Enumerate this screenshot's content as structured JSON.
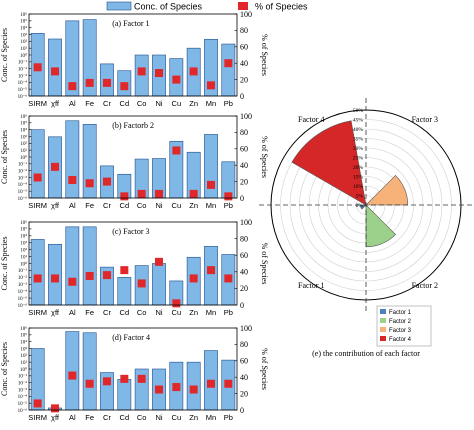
{
  "legend": {
    "conc_label": "Conc. of Species",
    "pct_label": "% of Species",
    "conc_color": "#7fb7e6",
    "pct_color": "#e0282a"
  },
  "chart_data": [
    {
      "type": "bar",
      "panel": "(a) Factor 1",
      "categories": [
        "SIRM",
        "χff",
        "Al",
        "Fe",
        "Cr",
        "Cd",
        "Co",
        "Ni",
        "Cu",
        "Zn",
        "Mn",
        "Pb"
      ],
      "series": [
        {
          "name": "Conc. of Species",
          "axis": "left",
          "scale": "log",
          "values": [
            1500,
            220,
            100000,
            150000,
            0.05,
            0.005,
            1,
            1,
            0.3,
            10,
            200,
            40
          ]
        },
        {
          "name": "% of Species",
          "axis": "right",
          "values": [
            35,
            30,
            12,
            16,
            16,
            12,
            30,
            28,
            20,
            30,
            13,
            40
          ]
        }
      ],
      "ylabel_left": "Conc. of Species",
      "ylabel_right": "% of Species",
      "ylim_left": [
        1e-06,
        1000000.0
      ],
      "ylim_right": [
        0,
        100
      ],
      "yticks_left": [
        "10⁻⁶",
        "10⁻⁵",
        "10⁻⁴",
        "10⁻³",
        "10⁻²",
        "10⁻¹",
        "10⁰",
        "10¹",
        "10²",
        "10³",
        "10⁴",
        "10⁵",
        "10⁶"
      ],
      "yticks_right": [
        "0",
        "20",
        "40",
        "60",
        "80",
        "100"
      ]
    },
    {
      "type": "bar",
      "panel": "(b) Factorb 2",
      "categories": [
        "SIRM",
        "χff",
        "Al",
        "Fe",
        "Cr",
        "Cd",
        "Co",
        "Ni",
        "Cu",
        "Zn",
        "Mn",
        "Pb"
      ],
      "series": [
        {
          "name": "Conc. of Species",
          "axis": "left",
          "scale": "log",
          "values": [
            10000,
            900,
            200000,
            60000,
            0.05,
            0.003,
            0.5,
            0.6,
            200,
            5,
            2000,
            0.2
          ]
        },
        {
          "name": "% of Species",
          "axis": "right",
          "values": [
            25,
            38,
            22,
            18,
            20,
            2,
            5,
            5,
            58,
            5,
            16,
            2
          ]
        }
      ],
      "ylabel_left": "Conc. of Species",
      "ylabel_right": "% of Species",
      "ylim_left": [
        1e-06,
        1000000.0
      ],
      "ylim_right": [
        0,
        100
      ],
      "yticks_left": [
        "10⁻⁶",
        "10⁻⁵",
        "10⁻⁴",
        "10⁻³",
        "10⁻²",
        "10⁻¹",
        "10⁰",
        "10¹",
        "10²",
        "10³",
        "10⁴",
        "10⁵",
        "10⁶"
      ],
      "yticks_right": [
        "0",
        "20",
        "40",
        "60",
        "80",
        "100"
      ]
    },
    {
      "type": "bar",
      "panel": "(c) Factor 3",
      "categories": [
        "SIRM",
        "χff",
        "Al",
        "Fe",
        "Cr",
        "Cd",
        "Co",
        "Ni",
        "Cu",
        "Zn",
        "Mn",
        "Pb"
      ],
      "series": [
        {
          "name": "Conc. of Species",
          "axis": "left",
          "scale": "log",
          "values": [
            3000,
            600,
            200000,
            200000,
            0.3,
            0.01,
            0.5,
            1,
            0.003,
            8,
            300,
            20
          ]
        },
        {
          "name": "% of Species",
          "axis": "right",
          "values": [
            32,
            32,
            28,
            35,
            36,
            42,
            26,
            52,
            2,
            32,
            42,
            32
          ]
        }
      ],
      "ylabel_left": "Conc. of Species",
      "ylabel_right": "% of Species",
      "ylim_left": [
        1e-06,
        1000000.0
      ],
      "ylim_right": [
        0,
        100
      ],
      "yticks_left": [
        "10⁻⁶",
        "10⁻⁵",
        "10⁻⁴",
        "10⁻³",
        "10⁻²",
        "10⁻¹",
        "10⁰",
        "10¹",
        "10²",
        "10³",
        "10⁴",
        "10⁵",
        "10⁶"
      ],
      "yticks_right": [
        "0",
        "20",
        "40",
        "60",
        "80",
        "100"
      ]
    },
    {
      "type": "bar",
      "panel": "(d) Factor 4",
      "categories": [
        "SIRM",
        "χff",
        "Al",
        "Fe",
        "Cr",
        "Cd",
        "Co",
        "Ni",
        "Cu",
        "Zn",
        "Mn",
        "Pb"
      ],
      "series": [
        {
          "name": "Conc. of Species",
          "axis": "left",
          "scale": "log",
          "values": [
            1000,
            2e-06,
            300000,
            200000,
            0.3,
            0.03,
            1,
            1,
            10,
            10,
            500,
            20
          ]
        },
        {
          "name": "% of Species",
          "axis": "right",
          "values": [
            8,
            2,
            42,
            32,
            35,
            38,
            38,
            25,
            28,
            25,
            32,
            32
          ]
        }
      ],
      "ylabel_left": "Conc. of Species",
      "ylabel_right": "% of Species",
      "ylim_left": [
        1e-06,
        1000000.0
      ],
      "ylim_right": [
        0,
        100
      ],
      "yticks_left": [
        "10⁻⁶",
        "10⁻⁵",
        "10⁻⁴",
        "10⁻³",
        "10⁻²",
        "10⁻¹",
        "10⁰",
        "10¹",
        "10²",
        "10³",
        "10⁴",
        "10⁵",
        "10⁶"
      ],
      "yticks_right": [
        "0",
        "20",
        "40",
        "60",
        "80",
        "100"
      ]
    },
    {
      "type": "pie",
      "subtype": "polar-area",
      "title": "(e) the contribution of each factor",
      "quadrant_labels": [
        "Factor 4",
        "Factor 3",
        "Factor 1",
        "Factor 2"
      ],
      "radial_ticks": [
        "0%",
        "5%",
        "10%",
        "15%",
        "20%",
        "25%",
        "30%",
        "35%",
        "40%",
        "45%",
        "50%"
      ],
      "rmax": 50,
      "series": [
        {
          "name": "Factor 1",
          "value": 3,
          "color": "#4f81bd",
          "start_deg": 180,
          "end_deg": 225
        },
        {
          "name": "Factor 2",
          "value": 22,
          "color": "#9bd18b",
          "start_deg": 270,
          "end_deg": 315
        },
        {
          "name": "Factor 3",
          "value": 22,
          "color": "#f7b27a",
          "start_deg": 0,
          "end_deg": 45
        },
        {
          "name": "Factor 4",
          "value": 45,
          "color": "#d62728",
          "start_deg": 100,
          "end_deg": 150
        }
      ]
    }
  ]
}
